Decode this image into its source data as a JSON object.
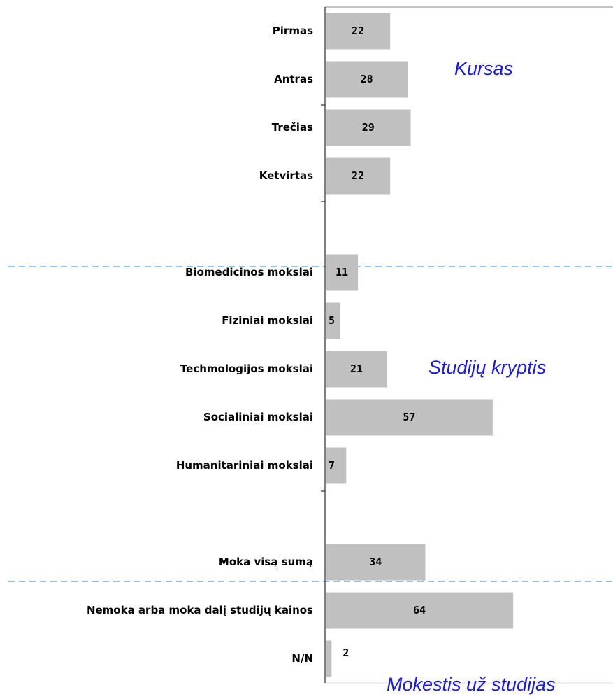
{
  "chart_data": {
    "type": "bar",
    "orientation": "horizontal",
    "categories": [
      "Pirmas",
      "Antras",
      "Trečias",
      "Ketvirtas",
      null,
      "Biomedicinos mokslai",
      "Fiziniai mokslai",
      "Techmologijos mokslai",
      "Socialiniai mokslai",
      "Humanitariniai mokslai",
      null,
      "Moka visą sumą",
      "Nemoka arba moka dalį studijų kainos",
      "N/N"
    ],
    "values": [
      22,
      28,
      29,
      22,
      null,
      11,
      5,
      21,
      57,
      7,
      null,
      34,
      64,
      2
    ],
    "color": "#c0c0c0",
    "xlim": [
      0,
      100
    ],
    "annotations": [
      "Kursas",
      "Studijų kryptis",
      "Mokestis už studijas"
    ]
  }
}
